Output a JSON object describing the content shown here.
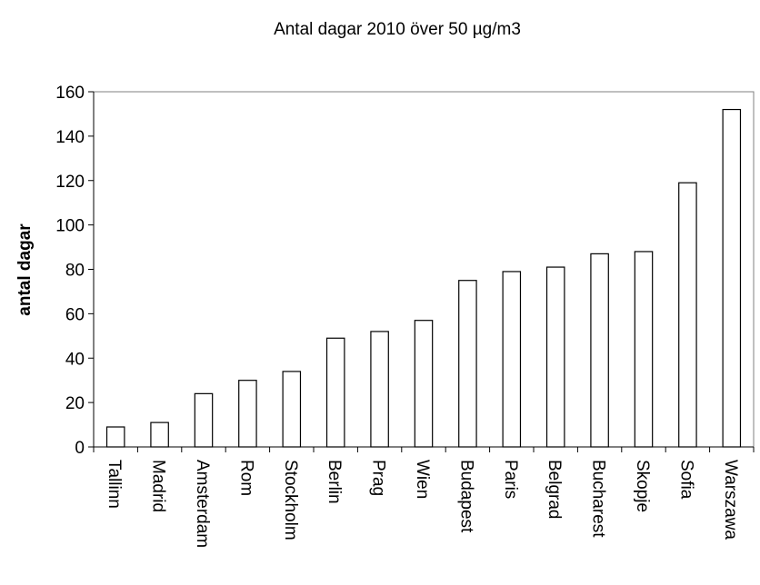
{
  "chart_data": {
    "type": "bar",
    "title": "Antal dagar 2010 över 50 µg/m3",
    "ylabel": "antal dagar",
    "xlabel": "",
    "ylim": [
      0,
      160
    ],
    "yticks": [
      0,
      20,
      40,
      60,
      80,
      100,
      120,
      140,
      160
    ],
    "grid": false,
    "legend": "none",
    "bar_fill": "#ffffff",
    "bar_stroke": "#000000",
    "categories": [
      "Tallinn",
      "Madrid",
      "Amsterdam",
      "Rom",
      "Stockholm",
      "Berlin",
      "Prag",
      "Wien",
      "Budapest",
      "Paris",
      "Belgrad",
      "Bucharest",
      "Skopje",
      "Sofia",
      "Warszawa"
    ],
    "values": [
      9,
      11,
      24,
      30,
      34,
      49,
      52,
      57,
      75,
      79,
      81,
      87,
      88,
      119,
      152
    ]
  }
}
